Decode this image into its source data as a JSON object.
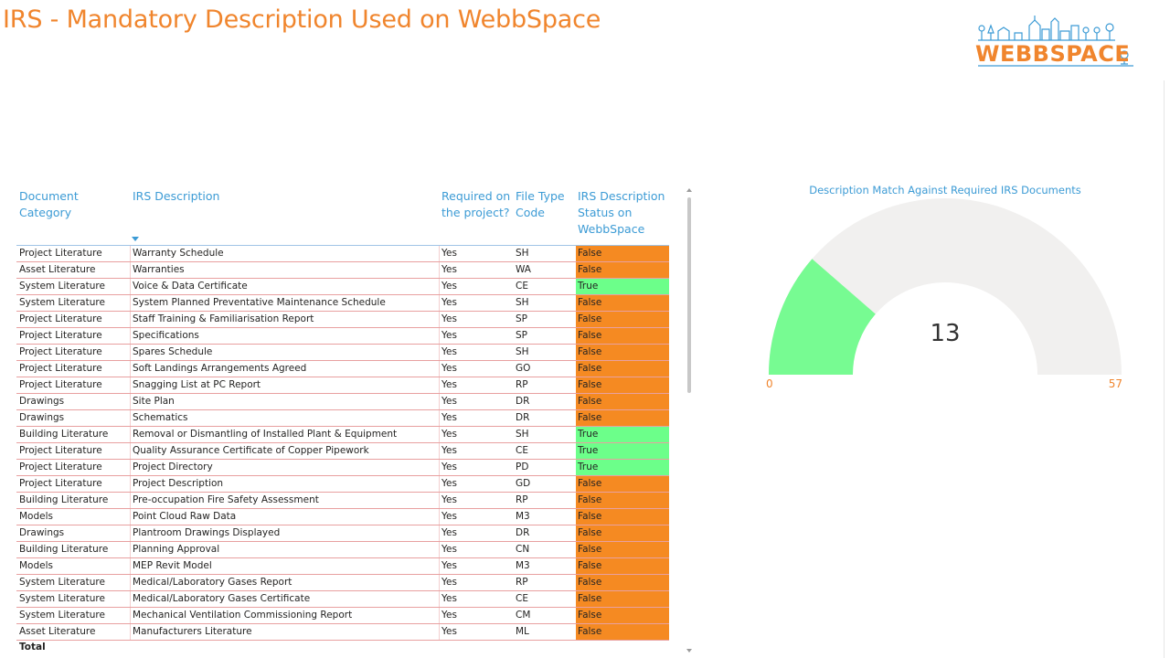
{
  "report": {
    "title": "IRS - Mandatory Description Used on WebbSpace",
    "logo_text": "WEBBSPACE"
  },
  "colors": {
    "accent_orange": "#F0852D",
    "header_blue": "#3C9BD5",
    "status_false": "#F58A22",
    "status_true": "#6CFF8A",
    "row_border": "#E8A0A0",
    "gauge_fill": "#77FB92",
    "gauge_track": "#F1F0EF"
  },
  "table": {
    "columns": [
      "Document Category",
      "IRS Description",
      "Required on the project?",
      "File Type Code",
      "IRS Description Status on WebbSpace"
    ],
    "sort_icon": "sort-descending-icon",
    "rows": [
      {
        "category": "Project Literature",
        "description": "Warranty Schedule",
        "required": "Yes",
        "code": "SH",
        "status": "False"
      },
      {
        "category": "Asset Literature",
        "description": "Warranties",
        "required": "Yes",
        "code": "WA",
        "status": "False"
      },
      {
        "category": "System Literature",
        "description": "Voice & Data Certificate",
        "required": "Yes",
        "code": "CE",
        "status": "True"
      },
      {
        "category": "System Literature",
        "description": "System Planned Preventative Maintenance Schedule",
        "required": "Yes",
        "code": "SH",
        "status": "False"
      },
      {
        "category": "Project Literature",
        "description": "Staff Training & Familiarisation Report",
        "required": "Yes",
        "code": "SP",
        "status": "False"
      },
      {
        "category": "Project Literature",
        "description": "Specifications",
        "required": "Yes",
        "code": "SP",
        "status": "False"
      },
      {
        "category": "Project Literature",
        "description": "Spares Schedule",
        "required": "Yes",
        "code": "SH",
        "status": "False"
      },
      {
        "category": "Project Literature",
        "description": "Soft Landings Arrangements Agreed",
        "required": "Yes",
        "code": "GO",
        "status": "False"
      },
      {
        "category": "Project Literature",
        "description": "Snagging List at PC Report",
        "required": "Yes",
        "code": "RP",
        "status": "False"
      },
      {
        "category": "Drawings",
        "description": "Site Plan",
        "required": "Yes",
        "code": "DR",
        "status": "False"
      },
      {
        "category": "Drawings",
        "description": "Schematics",
        "required": "Yes",
        "code": "DR",
        "status": "False"
      },
      {
        "category": "Building Literature",
        "description": "Removal or Dismantling of Installed Plant & Equipment",
        "required": "Yes",
        "code": "SH",
        "status": "True"
      },
      {
        "category": "Project Literature",
        "description": "Quality Assurance Certificate of Copper Pipework",
        "required": "Yes",
        "code": "CE",
        "status": "True"
      },
      {
        "category": "Project Literature",
        "description": "Project Directory",
        "required": "Yes",
        "code": "PD",
        "status": "True"
      },
      {
        "category": "Project Literature",
        "description": "Project Description",
        "required": "Yes",
        "code": "GD",
        "status": "False"
      },
      {
        "category": "Building Literature",
        "description": "Pre-occupation Fire Safety Assessment",
        "required": "Yes",
        "code": "RP",
        "status": "False"
      },
      {
        "category": "Models",
        "description": "Point Cloud Raw Data",
        "required": "Yes",
        "code": "M3",
        "status": "False"
      },
      {
        "category": "Drawings",
        "description": "Plantroom Drawings Displayed",
        "required": "Yes",
        "code": "DR",
        "status": "False"
      },
      {
        "category": "Building Literature",
        "description": "Planning Approval",
        "required": "Yes",
        "code": "CN",
        "status": "False"
      },
      {
        "category": "Models",
        "description": "MEP Revit Model",
        "required": "Yes",
        "code": "M3",
        "status": "False"
      },
      {
        "category": "System Literature",
        "description": "Medical/Laboratory Gases Report",
        "required": "Yes",
        "code": "RP",
        "status": "False"
      },
      {
        "category": "System Literature",
        "description": "Medical/Laboratory Gases Certificate",
        "required": "Yes",
        "code": "CE",
        "status": "False"
      },
      {
        "category": "System Literature",
        "description": "Mechanical Ventilation Commissioning Report",
        "required": "Yes",
        "code": "CM",
        "status": "False"
      },
      {
        "category": "Asset Literature",
        "description": "Manufacturers Literature",
        "required": "Yes",
        "code": "ML",
        "status": "False"
      }
    ],
    "total_label": "Total"
  },
  "gauge": {
    "title": "Description Match Against Required IRS Documents",
    "value": 13,
    "min": 0,
    "max": 57
  }
}
